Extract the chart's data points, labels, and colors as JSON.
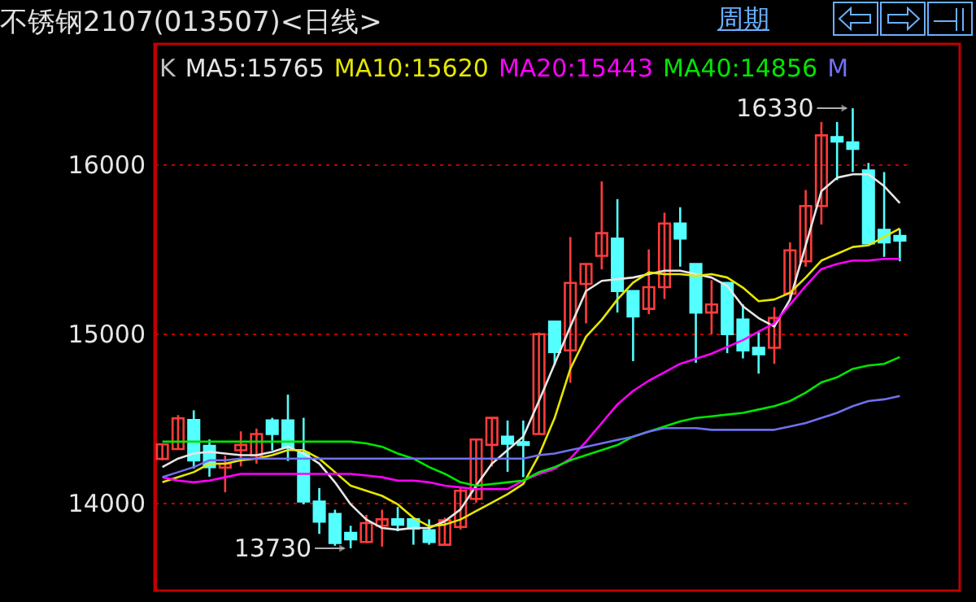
{
  "chart_data": {
    "type": "candlestick",
    "title": "不锈钢2107(013507)<日线>",
    "categories": [
      null,
      null,
      null,
      null,
      null,
      null,
      null,
      null,
      null,
      null,
      null,
      null,
      null,
      null,
      null,
      null,
      null,
      null,
      null,
      null,
      null,
      null,
      null,
      null,
      null,
      null,
      null,
      null,
      null,
      null,
      null,
      null,
      null,
      null,
      null,
      null,
      null,
      null,
      null,
      null,
      null,
      null,
      null,
      null,
      null,
      null,
      null,
      null
    ],
    "ohlc": [
      [
        14258,
        14350,
        14250,
        14344
      ],
      [
        14316,
        14517,
        14316,
        14498
      ],
      [
        14488,
        14545,
        14201,
        14249
      ],
      [
        14335,
        14373,
        14153,
        14210
      ],
      [
        14207,
        14278,
        14061,
        14230
      ],
      [
        14309,
        14421,
        14214,
        14341
      ],
      [
        14278,
        14437,
        14230,
        14405
      ],
      [
        14485,
        14501,
        14309,
        14405
      ],
      [
        14485,
        14638,
        14246,
        14325
      ],
      [
        14293,
        14501,
        13990,
        14006
      ],
      [
        14006,
        14086,
        13815,
        13888
      ],
      [
        13933,
        13958,
        13745,
        13761
      ],
      [
        13821,
        13863,
        13730,
        13783
      ],
      [
        13767,
        13927,
        13761,
        13879
      ],
      [
        13863,
        13958,
        13740,
        13901
      ],
      [
        13901,
        13974,
        13831,
        13869
      ],
      [
        13901,
        13901,
        13751,
        13847
      ],
      [
        13837,
        13901,
        13751,
        13767
      ],
      [
        13751,
        13911,
        13751,
        13895
      ],
      [
        13856,
        14090,
        13840,
        14070
      ],
      [
        14022,
        14373,
        14000,
        14373
      ],
      [
        14341,
        14501,
        14214,
        14501
      ],
      [
        14389,
        14485,
        14182,
        14348
      ],
      [
        14357,
        14485,
        14150,
        14341
      ],
      [
        14405,
        15005,
        14405,
        14995
      ],
      [
        15069,
        15069,
        14813,
        14890
      ],
      [
        14899,
        15569,
        14708,
        15298
      ],
      [
        15292,
        15410,
        15059,
        15410
      ],
      [
        15458,
        15898,
        15378,
        15592
      ],
      [
        15560,
        15793,
        15123,
        15250
      ],
      [
        15250,
        15250,
        14836,
        15100
      ],
      [
        15145,
        15496,
        15113,
        15273
      ],
      [
        15273,
        15713,
        15203,
        15649
      ],
      [
        15649,
        15745,
        15394,
        15560
      ],
      [
        15410,
        15410,
        14826,
        15123
      ],
      [
        15123,
        15314,
        14995,
        15171
      ],
      [
        15298,
        15298,
        14883,
        14995
      ],
      [
        15081,
        15171,
        14852,
        14899
      ],
      [
        14915,
        15011,
        14762,
        14877
      ],
      [
        14915,
        15155,
        14820,
        15091
      ],
      [
        15235,
        15538,
        15203,
        15490
      ],
      [
        15426,
        15847,
        15394,
        15752
      ],
      [
        15752,
        16249,
        15643,
        16170
      ],
      [
        16160,
        16249,
        15905,
        16134
      ],
      [
        16128,
        16330,
        15953,
        16090
      ],
      [
        15962,
        16007,
        15532,
        15532
      ],
      [
        15611,
        15953,
        15452,
        15538
      ],
      [
        15576,
        15617,
        15426,
        15548
      ]
    ],
    "colors": [
      "#ff3c3c",
      "#ff3c3c",
      "#54ffff",
      "#54ffff",
      "#ff3c3c",
      "#ff3c3c",
      "#ff3c3c",
      "#54ffff",
      "#54ffff",
      "#54ffff",
      "#54ffff",
      "#54ffff",
      "#54ffff",
      "#ff3c3c",
      "#ff3c3c",
      "#54ffff",
      "#54ffff",
      "#54ffff",
      "#ff3c3c",
      "#ff3c3c",
      "#ff3c3c",
      "#ff3c3c",
      "#54ffff",
      "#54ffff",
      "#ff3c3c",
      "#54ffff",
      "#ff3c3c",
      "#ff3c3c",
      "#ff3c3c",
      "#54ffff",
      "#54ffff",
      "#ff3c3c",
      "#ff3c3c",
      "#54ffff",
      "#54ffff",
      "#ff3c3c",
      "#54ffff",
      "#54ffff",
      "#54ffff",
      "#ff3c3c",
      "#ff3c3c",
      "#ff3c3c",
      "#ff3c3c",
      "#54ffff",
      "#54ffff",
      "#54ffff",
      "#54ffff",
      "#54ffff"
    ],
    "series": [
      {
        "type": "line",
        "name": "MA5:15765",
        "color": "#e6e6e6",
        "values": [
          14210,
          14260,
          14290,
          14300,
          14290,
          14280,
          14280,
          14300,
          14330,
          14290,
          14230,
          14120,
          13990,
          13900,
          13850,
          13840,
          13850,
          13850,
          13890,
          13960,
          14100,
          14230,
          14310,
          14390,
          14600,
          14820,
          15040,
          15250,
          15310,
          15320,
          15330,
          15350,
          15370,
          15370,
          15350,
          15330,
          15280,
          15160,
          15090,
          15040,
          15200,
          15520,
          15840,
          15920,
          15940,
          15940,
          15870,
          15770
        ]
      },
      {
        "type": "line",
        "name": "MA10:15620",
        "color": "#e6e600",
        "values": [
          14120,
          14150,
          14180,
          14230,
          14230,
          14250,
          14260,
          14280,
          14310,
          14310,
          14260,
          14180,
          14100,
          14070,
          14040,
          13990,
          13910,
          13860,
          13870,
          13900,
          13950,
          14000,
          14050,
          14110,
          14280,
          14500,
          14790,
          14980,
          15080,
          15200,
          15300,
          15360,
          15350,
          15350,
          15340,
          15350,
          15330,
          15270,
          15190,
          15200,
          15240,
          15330,
          15430,
          15470,
          15510,
          15520,
          15570,
          15620
        ]
      },
      {
        "type": "line",
        "name": "MA20:15443",
        "color": "#ff00ff",
        "values": [
          14150,
          14130,
          14120,
          14130,
          14150,
          14170,
          14170,
          14170,
          14170,
          14170,
          14170,
          14170,
          14170,
          14160,
          14150,
          14130,
          14130,
          14120,
          14100,
          14090,
          14080,
          14080,
          14080,
          14130,
          14170,
          14200,
          14260,
          14360,
          14470,
          14580,
          14660,
          14720,
          14770,
          14820,
          14850,
          14880,
          14920,
          14960,
          15010,
          15060,
          15170,
          15280,
          15380,
          15410,
          15430,
          15430,
          15440,
          15440
        ]
      },
      {
        "type": "line",
        "name": "MA40:14856",
        "color": "#00e600",
        "values": [
          14360,
          14360,
          14360,
          14360,
          14360,
          14360,
          14360,
          14360,
          14360,
          14360,
          14360,
          14360,
          14360,
          14350,
          14330,
          14290,
          14260,
          14210,
          14170,
          14120,
          14100,
          14110,
          14120,
          14130,
          14180,
          14210,
          14250,
          14280,
          14310,
          14340,
          14390,
          14420,
          14450,
          14480,
          14500,
          14510,
          14520,
          14530,
          14550,
          14570,
          14600,
          14650,
          14710,
          14740,
          14790,
          14810,
          14820,
          14860
        ]
      },
      {
        "type": "line",
        "name": "M",
        "color": "#7070f0",
        "values": [
          14150,
          14180,
          14210,
          14250,
          14250,
          14260,
          14260,
          14260,
          14260,
          14260,
          14260,
          14260,
          14260,
          14260,
          14260,
          14260,
          14260,
          14260,
          14260,
          14260,
          14260,
          14260,
          14260,
          14260,
          14280,
          14290,
          14310,
          14330,
          14350,
          14370,
          14390,
          14420,
          14440,
          14440,
          14440,
          14430,
          14430,
          14430,
          14430,
          14430,
          14450,
          14470,
          14500,
          14530,
          14570,
          14600,
          14610,
          14630
        ]
      }
    ],
    "ylim": [
      13480,
      16710
    ],
    "yticks": [
      {
        "value": 14000,
        "label": "14000"
      },
      {
        "value": 15000,
        "label": "15000"
      },
      {
        "value": 16000,
        "label": "16000"
      }
    ],
    "grid": "y",
    "legend": "top left",
    "tick_labels": "y",
    "annotations": [
      "K",
      "周期",
      "16330",
      "13730"
    ]
  }
}
